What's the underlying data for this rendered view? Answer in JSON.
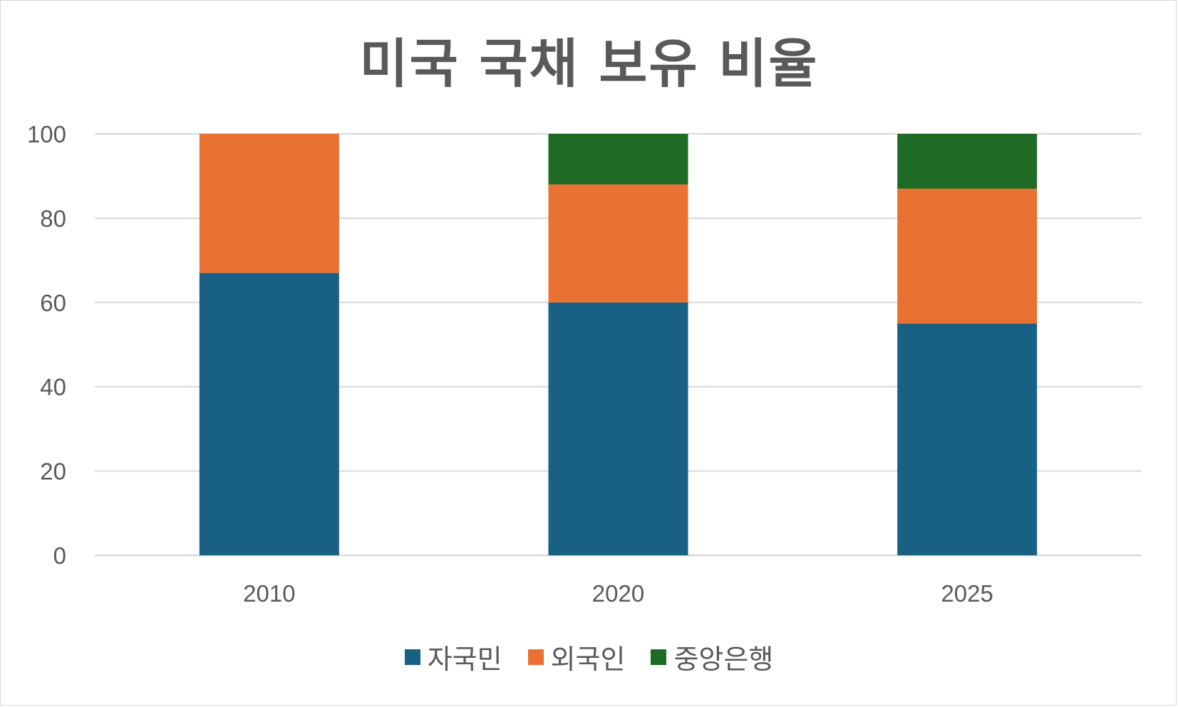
{
  "chart_data": {
    "type": "bar",
    "stacked": true,
    "title": "미국 국채 보유 비율",
    "categories": [
      "2010",
      "2020",
      "2025"
    ],
    "series": [
      {
        "name": "자국민",
        "color": "#186184",
        "values": [
          67,
          60,
          55
        ]
      },
      {
        "name": "외국인",
        "color": "#E97132",
        "values": [
          33,
          28,
          32
        ]
      },
      {
        "name": "중앙은행",
        "color": "#1D6B25",
        "values": [
          0,
          12,
          13
        ]
      }
    ],
    "yticks": [
      "0",
      "20",
      "40",
      "60",
      "80",
      "100"
    ],
    "ylim": [
      0,
      100
    ],
    "grid": true,
    "legend_position": "bottom",
    "gridline_color": "#d9d9d9",
    "text_color": "#595959"
  }
}
